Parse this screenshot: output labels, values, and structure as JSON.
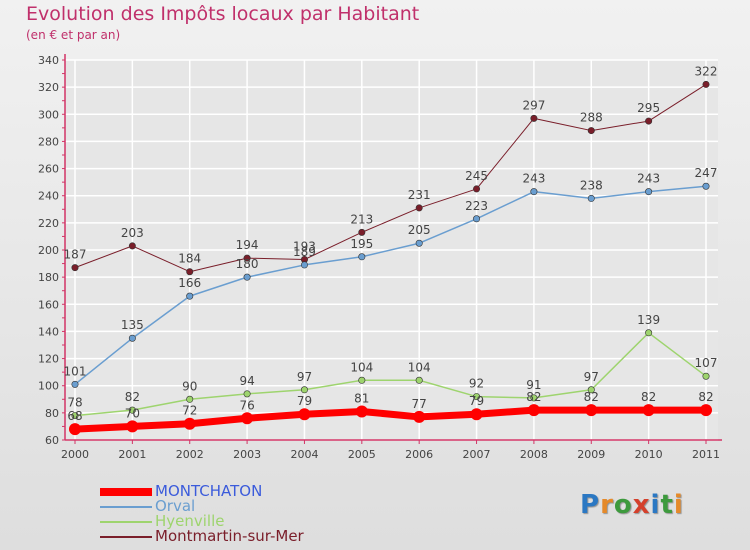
{
  "header": {
    "title": "Evolution des Impôts locaux par Habitant",
    "subtitle": "(en € et par an)"
  },
  "colors": {
    "title": "#c0306b",
    "axis": "#d23466",
    "grid": "#ffffff",
    "text": "#444444"
  },
  "logo": {
    "text": "Proxiti",
    "letters": [
      "P",
      "r",
      "o",
      "x",
      "i",
      "t",
      "i"
    ],
    "colors": [
      "#2b78c3",
      "#e58a2a",
      "#3d9a3d",
      "#d4402c",
      "#2b78c3",
      "#3d9a3d",
      "#e58a2a"
    ]
  },
  "chart_data": {
    "type": "line",
    "title": "Evolution des Impôts locaux par Habitant",
    "subtitle": "(en € et par an)",
    "x": [
      "2000",
      "2001",
      "2002",
      "2003",
      "2004",
      "2005",
      "2006",
      "2007",
      "2008",
      "2009",
      "2010",
      "2011"
    ],
    "ylim": [
      60,
      340
    ],
    "yticks": [
      60,
      80,
      100,
      120,
      140,
      160,
      180,
      200,
      220,
      240,
      260,
      280,
      300,
      320,
      340
    ],
    "grid": true,
    "legend_position": "bottom-left",
    "series": [
      {
        "name": "MONTCHATON",
        "color": "#ff0000",
        "legend_color": "#3b5bdb",
        "width": 7,
        "values": [
          68,
          70,
          72,
          76,
          79,
          81,
          77,
          79,
          82,
          82,
          82,
          82
        ]
      },
      {
        "name": "Orval",
        "color": "#6a9ed0",
        "legend_color": "#6a9ed0",
        "width": 1.5,
        "values": [
          101,
          135,
          166,
          180,
          189,
          195,
          205,
          223,
          243,
          238,
          243,
          247
        ]
      },
      {
        "name": "Hyenville",
        "color": "#9ed46e",
        "legend_color": "#9ed46e",
        "width": 1.5,
        "values": [
          78,
          82,
          90,
          94,
          97,
          104,
          104,
          92,
          91,
          97,
          139,
          107
        ]
      },
      {
        "name": "Montmartin-sur-Mer",
        "color": "#7a1e2a",
        "legend_color": "#7a1e2a",
        "width": 1,
        "values": [
          187,
          203,
          184,
          194,
          193,
          213,
          231,
          245,
          297,
          288,
          295,
          322
        ]
      }
    ]
  }
}
